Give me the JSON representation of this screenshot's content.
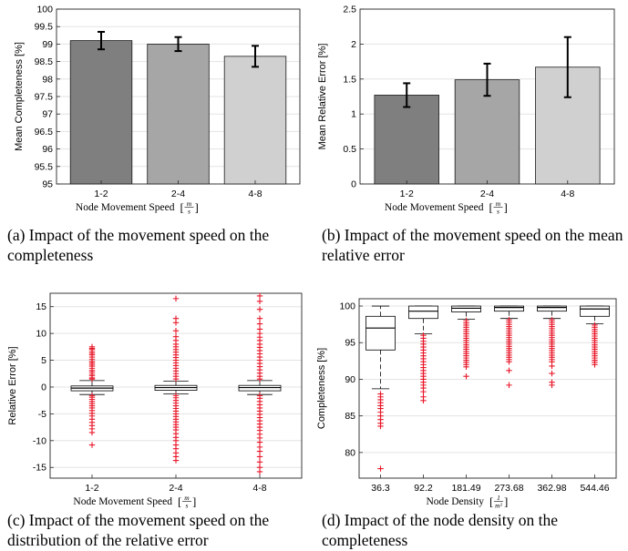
{
  "chart_data": [
    {
      "type": "bar",
      "ylabel": "Mean Completeness [%]",
      "xlabel_prefix": "Node Movement Speed",
      "xlabel_unit_num": "m",
      "xlabel_unit_den": "s",
      "categories": [
        "1-2",
        "2-4",
        "4-8"
      ],
      "values": [
        99.1,
        99.0,
        98.65
      ],
      "error": [
        0.25,
        0.2,
        0.3
      ],
      "colors": [
        "#7f7f7f",
        "#a6a6a6",
        "#d0d0d0"
      ],
      "ylim": [
        95,
        100
      ],
      "yticks": [
        "95",
        "95.5",
        "96",
        "96.5",
        "97",
        "97.5",
        "98",
        "98.5",
        "99",
        "99.5",
        "100"
      ],
      "grid": true,
      "caption": "(a) Impact of the movement speed on the completeness"
    },
    {
      "type": "bar",
      "ylabel": "Mean Relative Error [%]",
      "xlabel_prefix": "Node Movement Speed",
      "xlabel_unit_num": "m",
      "xlabel_unit_den": "s",
      "categories": [
        "1-2",
        "2-4",
        "4-8"
      ],
      "values": [
        1.27,
        1.49,
        1.67
      ],
      "error": [
        0.17,
        0.23,
        0.43
      ],
      "colors": [
        "#7f7f7f",
        "#a6a6a6",
        "#d0d0d0"
      ],
      "ylim": [
        0,
        2.5
      ],
      "yticks": [
        "0",
        "0.5",
        "1",
        "1.5",
        "2",
        "2.5"
      ],
      "grid": true,
      "caption": "(b) Impact of the movement speed on the mean relative error"
    },
    {
      "type": "box",
      "ylabel": "Relative Error [%]",
      "xlabel_prefix": "Node Movement Speed",
      "xlabel_unit_num": "m",
      "xlabel_unit_den": "s",
      "categories": [
        "1-2",
        "2-4",
        "4-8"
      ],
      "boxes": [
        {
          "q1": -0.7,
          "median": -0.2,
          "q3": 0.2,
          "whisker_low": -1.4,
          "whisker_high": 1.2
        },
        {
          "q1": -0.6,
          "median": -0.1,
          "q3": 0.3,
          "whisker_low": -1.3,
          "whisker_high": 1.1
        },
        {
          "q1": -0.7,
          "median": -0.1,
          "q3": 0.3,
          "whisker_low": -1.4,
          "whisker_high": 1.2
        }
      ],
      "outliers": [
        [
          7.5,
          7.2,
          7.0,
          6.6,
          6.3,
          6.0,
          5.6,
          5.2,
          4.8,
          4.5,
          4.2,
          3.9,
          3.5,
          3.1,
          2.8,
          2.4,
          2.1,
          1.7,
          1.5,
          -1.6,
          -1.9,
          -2.3,
          -2.7,
          -3.1,
          -3.5,
          -3.9,
          -4.4,
          -4.9,
          -5.4,
          -6.0,
          -6.6,
          -7.2,
          -7.8,
          -8.5,
          -10.8
        ],
        [
          16.5,
          12.8,
          12.0,
          10.5,
          9.4,
          8.7,
          8.0,
          7.5,
          7.0,
          6.5,
          6.0,
          5.5,
          5.0,
          4.5,
          4.0,
          3.5,
          3.0,
          2.5,
          2.0,
          1.5,
          -1.6,
          -2.0,
          -2.5,
          -3.0,
          -3.5,
          -4.0,
          -4.5,
          -5.0,
          -5.5,
          -6.0,
          -6.5,
          -7.0,
          -7.5,
          -8.0,
          -8.7,
          -9.4,
          -10.0,
          -10.8,
          -11.5,
          -12.3,
          -13.0,
          -13.7
        ],
        [
          17.0,
          16.0,
          14.5,
          12.8,
          11.8,
          10.8,
          10.0,
          9.3,
          8.7,
          8.0,
          7.4,
          6.8,
          6.2,
          5.6,
          5.0,
          4.4,
          3.8,
          3.2,
          2.6,
          2.0,
          1.5,
          -1.6,
          -2.1,
          -2.7,
          -3.3,
          -3.9,
          -4.5,
          -5.1,
          -5.7,
          -6.3,
          -6.9,
          -7.5,
          -8.1,
          -8.8,
          -9.5,
          -10.3,
          -11.2,
          -12.0,
          -13.0,
          -14.0,
          -15.0,
          -15.8
        ]
      ],
      "ylim": [
        -17,
        17.5
      ],
      "yticks": [
        -15,
        -10,
        -5,
        0,
        5,
        10,
        15
      ],
      "grid": true,
      "caption": "(c) Impact of the movement speed on the distribution of the relative error"
    },
    {
      "type": "box",
      "ylabel": "Completeness [%]",
      "xlabel_prefix": "Node Density",
      "xlabel_unit_num": "1",
      "xlabel_unit_den": "m²",
      "categories": [
        "36.3",
        "92.2",
        "181.49",
        "273.68",
        "362.98",
        "544.46"
      ],
      "boxes": [
        {
          "q1": 94.0,
          "median": 97.0,
          "q3": 98.6,
          "whisker_low": 88.7,
          "whisker_high": 100
        },
        {
          "q1": 98.3,
          "median": 99.3,
          "q3": 100,
          "whisker_low": 96.2,
          "whisker_high": 100
        },
        {
          "q1": 99.2,
          "median": 99.7,
          "q3": 100,
          "whisker_low": 98.2,
          "whisker_high": 100
        },
        {
          "q1": 99.3,
          "median": 99.8,
          "q3": 100,
          "whisker_low": 98.3,
          "whisker_high": 100
        },
        {
          "q1": 99.3,
          "median": 99.8,
          "q3": 100,
          "whisker_low": 98.3,
          "whisker_high": 100
        },
        {
          "q1": 98.6,
          "median": 99.6,
          "q3": 100,
          "whisker_low": 97.6,
          "whisker_high": 100
        }
      ],
      "outliers": [
        [
          88.0,
          87.6,
          87.2,
          86.8,
          86.4,
          86.0,
          85.5,
          85.0,
          84.5,
          84.0,
          83.6,
          77.8
        ],
        [
          96.0,
          95.6,
          95.2,
          94.8,
          94.4,
          94.0,
          93.6,
          93.2,
          92.8,
          92.4,
          92.0,
          91.6,
          91.2,
          90.8,
          90.4,
          90.0,
          89.6,
          89.2,
          88.8,
          88.3,
          87.6,
          87.1
        ],
        [
          98.0,
          97.7,
          97.4,
          97.1,
          96.8,
          96.5,
          96.2,
          95.9,
          95.6,
          95.3,
          95.0,
          94.7,
          94.4,
          94.1,
          93.8,
          93.5,
          93.2,
          92.9,
          92.6,
          92.3,
          92.0,
          91.7,
          90.4
        ],
        [
          98.1,
          97.8,
          97.5,
          97.2,
          96.9,
          96.6,
          96.3,
          96.0,
          95.7,
          95.4,
          95.1,
          94.8,
          94.5,
          94.2,
          93.9,
          93.6,
          93.3,
          93.0,
          92.7,
          92.4,
          91.2,
          89.2
        ],
        [
          98.1,
          97.8,
          97.5,
          97.2,
          96.9,
          96.6,
          96.3,
          96.0,
          95.7,
          95.4,
          95.1,
          94.8,
          94.5,
          94.2,
          93.9,
          93.6,
          93.3,
          93.0,
          92.7,
          92.4,
          91.8,
          90.8,
          89.6,
          89.2
        ],
        [
          97.4,
          97.1,
          96.8,
          96.5,
          96.2,
          95.9,
          95.6,
          95.3,
          95.0,
          94.7,
          94.4,
          94.1,
          93.8,
          93.5,
          93.2,
          92.9,
          92.6,
          92.3,
          92.0
        ]
      ],
      "ylim": [
        76.5,
        101
      ],
      "yticks": [
        80,
        85,
        90,
        95,
        100
      ],
      "grid": true,
      "caption": "(d) Impact of the node density on the completeness"
    }
  ]
}
